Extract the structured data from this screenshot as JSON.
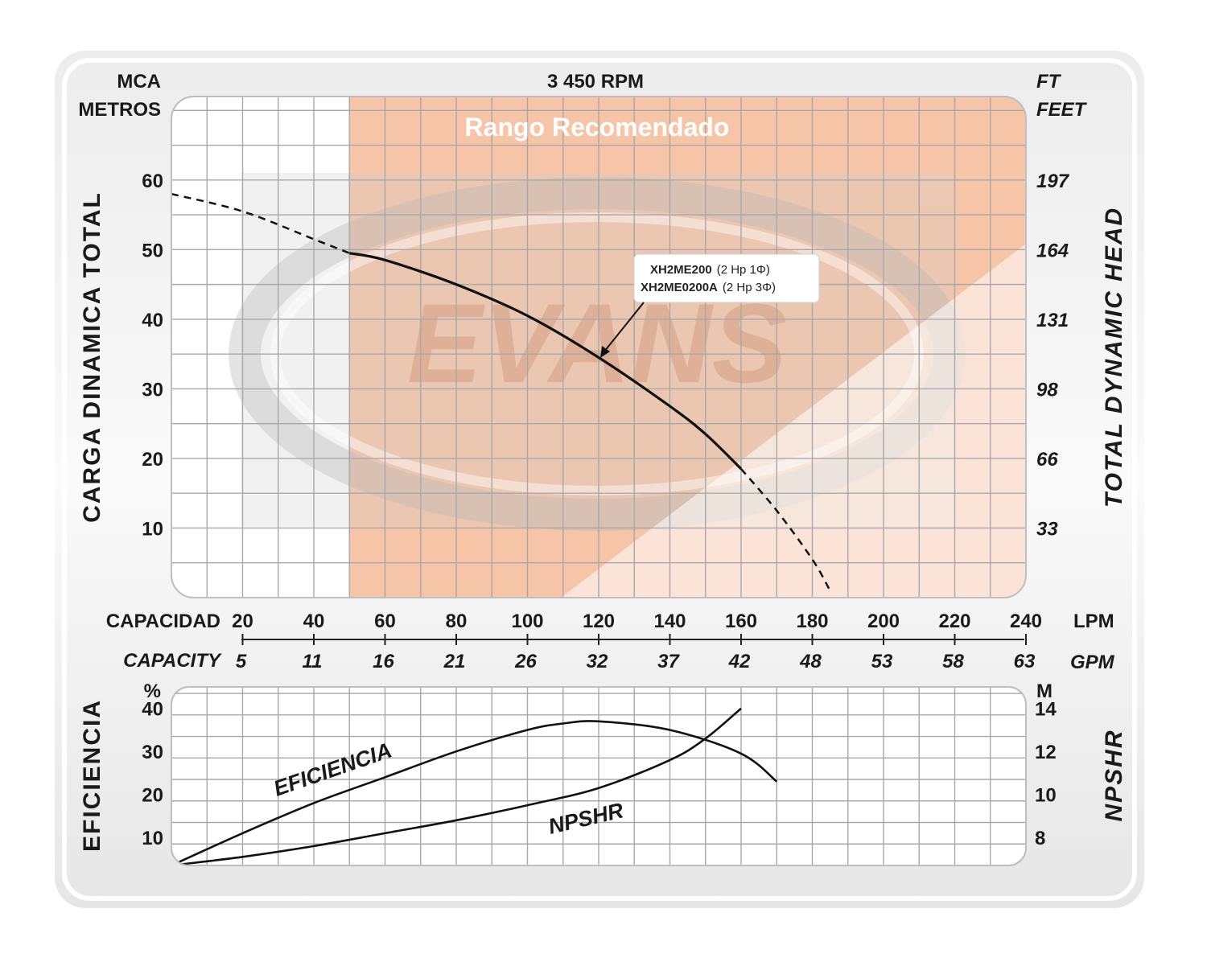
{
  "chart_data": [
    {
      "type": "line",
      "title": "3 450 RPM",
      "left_unit_lines": [
        "MCA",
        "METROS"
      ],
      "right_unit_lines": [
        "FT",
        "FEET"
      ],
      "ylabel_left": "CARGA  DINAMICA  TOTAL",
      "ylabel_right": "TOTAL  DYNAMIC  HEAD",
      "xlabel_primary": "CAPACIDAD",
      "xunit_primary": "LPM",
      "xlabel_secondary": "CAPACITY",
      "xunit_secondary": "GPM",
      "x_ticks": [
        "20",
        "40",
        "60",
        "80",
        "100",
        "120",
        "140",
        "160",
        "180",
        "200",
        "220",
        "240"
      ],
      "x_ticks_secondary": [
        "5",
        "11",
        "16",
        "21",
        "26",
        "32",
        "37",
        "42",
        "48",
        "53",
        "58",
        "63"
      ],
      "y_ticks": [
        "10",
        "20",
        "30",
        "40",
        "50",
        "60"
      ],
      "y_ticks_right": [
        "33",
        "66",
        "98",
        "131",
        "164",
        "197"
      ],
      "xlim": [
        0,
        240
      ],
      "ylim": [
        0,
        72
      ],
      "recommended_range": {
        "label": "Rango Recomendado",
        "x_from": 50,
        "x_to": 240
      },
      "watermark": "EVANS",
      "grid": true,
      "series": [
        {
          "name": "XH2ME200 (2 Hp 1Φ) / XH2ME0200A (2 Hp 3Φ)",
          "solid": [
            [
              50,
              49.5
            ],
            [
              60,
              48.5
            ],
            [
              80,
              45
            ],
            [
              100,
              40.5
            ],
            [
              120,
              34.5
            ],
            [
              140,
              27.5
            ],
            [
              150,
              23.5
            ],
            [
              160,
              18.5
            ]
          ],
          "dashed_before": [
            [
              0,
              58
            ],
            [
              20,
              55.5
            ],
            [
              40,
              51.5
            ],
            [
              50,
              49.5
            ]
          ],
          "dashed_after": [
            [
              160,
              18.5
            ],
            [
              170,
              12.5
            ],
            [
              180,
              5.5
            ],
            [
              185,
              1
            ]
          ]
        }
      ],
      "model_box": {
        "line1_bold": "XH2ME200",
        "line1_rest": "(2 Hp  1Φ)",
        "line2_bold": "XH2ME0200A",
        "line2_rest": "(2 Hp  3Φ)"
      }
    },
    {
      "type": "line",
      "ylabel_left": "EFICIENCIA",
      "left_unit": "%",
      "ylabel_right": "NPSHR",
      "right_unit": "M",
      "y_ticks": [
        "10",
        "20",
        "30",
        "40"
      ],
      "y_ticks_right": [
        "8",
        "10",
        "12",
        "14"
      ],
      "xlim": [
        0,
        240
      ],
      "ylim_left": [
        3.5,
        45
      ],
      "ylim_right": [
        6.7,
        15
      ],
      "grid": true,
      "series": [
        {
          "name": "EFICIENCIA",
          "axis": "left",
          "x": [
            0,
            20,
            40,
            60,
            80,
            100,
            110,
            120,
            140,
            160,
            170
          ],
          "y": [
            3.5,
            11,
            18,
            24,
            30,
            35,
            36.5,
            37,
            35,
            29.5,
            23
          ]
        },
        {
          "name": "NPSHR",
          "axis": "right",
          "x": [
            0,
            20,
            40,
            60,
            80,
            100,
            120,
            140,
            150,
            160
          ],
          "y": [
            6.7,
            7.1,
            7.6,
            8.2,
            8.8,
            9.5,
            10.3,
            11.6,
            12.6,
            14
          ]
        }
      ]
    }
  ]
}
